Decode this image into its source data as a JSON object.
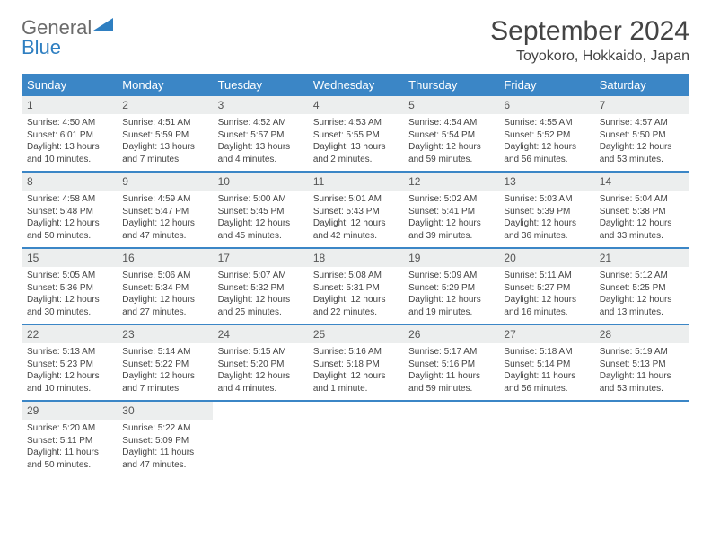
{
  "logo": {
    "part1": "General",
    "part2": "Blue"
  },
  "title": "September 2024",
  "location": "Toyokoro, Hokkaido, Japan",
  "colors": {
    "header_bg": "#3b86c6",
    "daynum_bg": "#eceeee",
    "text": "#444444",
    "logo_gray": "#6b6b6b",
    "logo_blue": "#2f7fc1"
  },
  "weekdays": [
    "Sunday",
    "Monday",
    "Tuesday",
    "Wednesday",
    "Thursday",
    "Friday",
    "Saturday"
  ],
  "weeks": [
    [
      {
        "n": "1",
        "sr": "Sunrise: 4:50 AM",
        "ss": "Sunset: 6:01 PM",
        "dl": "Daylight: 13 hours and 10 minutes."
      },
      {
        "n": "2",
        "sr": "Sunrise: 4:51 AM",
        "ss": "Sunset: 5:59 PM",
        "dl": "Daylight: 13 hours and 7 minutes."
      },
      {
        "n": "3",
        "sr": "Sunrise: 4:52 AM",
        "ss": "Sunset: 5:57 PM",
        "dl": "Daylight: 13 hours and 4 minutes."
      },
      {
        "n": "4",
        "sr": "Sunrise: 4:53 AM",
        "ss": "Sunset: 5:55 PM",
        "dl": "Daylight: 13 hours and 2 minutes."
      },
      {
        "n": "5",
        "sr": "Sunrise: 4:54 AM",
        "ss": "Sunset: 5:54 PM",
        "dl": "Daylight: 12 hours and 59 minutes."
      },
      {
        "n": "6",
        "sr": "Sunrise: 4:55 AM",
        "ss": "Sunset: 5:52 PM",
        "dl": "Daylight: 12 hours and 56 minutes."
      },
      {
        "n": "7",
        "sr": "Sunrise: 4:57 AM",
        "ss": "Sunset: 5:50 PM",
        "dl": "Daylight: 12 hours and 53 minutes."
      }
    ],
    [
      {
        "n": "8",
        "sr": "Sunrise: 4:58 AM",
        "ss": "Sunset: 5:48 PM",
        "dl": "Daylight: 12 hours and 50 minutes."
      },
      {
        "n": "9",
        "sr": "Sunrise: 4:59 AM",
        "ss": "Sunset: 5:47 PM",
        "dl": "Daylight: 12 hours and 47 minutes."
      },
      {
        "n": "10",
        "sr": "Sunrise: 5:00 AM",
        "ss": "Sunset: 5:45 PM",
        "dl": "Daylight: 12 hours and 45 minutes."
      },
      {
        "n": "11",
        "sr": "Sunrise: 5:01 AM",
        "ss": "Sunset: 5:43 PM",
        "dl": "Daylight: 12 hours and 42 minutes."
      },
      {
        "n": "12",
        "sr": "Sunrise: 5:02 AM",
        "ss": "Sunset: 5:41 PM",
        "dl": "Daylight: 12 hours and 39 minutes."
      },
      {
        "n": "13",
        "sr": "Sunrise: 5:03 AM",
        "ss": "Sunset: 5:39 PM",
        "dl": "Daylight: 12 hours and 36 minutes."
      },
      {
        "n": "14",
        "sr": "Sunrise: 5:04 AM",
        "ss": "Sunset: 5:38 PM",
        "dl": "Daylight: 12 hours and 33 minutes."
      }
    ],
    [
      {
        "n": "15",
        "sr": "Sunrise: 5:05 AM",
        "ss": "Sunset: 5:36 PM",
        "dl": "Daylight: 12 hours and 30 minutes."
      },
      {
        "n": "16",
        "sr": "Sunrise: 5:06 AM",
        "ss": "Sunset: 5:34 PM",
        "dl": "Daylight: 12 hours and 27 minutes."
      },
      {
        "n": "17",
        "sr": "Sunrise: 5:07 AM",
        "ss": "Sunset: 5:32 PM",
        "dl": "Daylight: 12 hours and 25 minutes."
      },
      {
        "n": "18",
        "sr": "Sunrise: 5:08 AM",
        "ss": "Sunset: 5:31 PM",
        "dl": "Daylight: 12 hours and 22 minutes."
      },
      {
        "n": "19",
        "sr": "Sunrise: 5:09 AM",
        "ss": "Sunset: 5:29 PM",
        "dl": "Daylight: 12 hours and 19 minutes."
      },
      {
        "n": "20",
        "sr": "Sunrise: 5:11 AM",
        "ss": "Sunset: 5:27 PM",
        "dl": "Daylight: 12 hours and 16 minutes."
      },
      {
        "n": "21",
        "sr": "Sunrise: 5:12 AM",
        "ss": "Sunset: 5:25 PM",
        "dl": "Daylight: 12 hours and 13 minutes."
      }
    ],
    [
      {
        "n": "22",
        "sr": "Sunrise: 5:13 AM",
        "ss": "Sunset: 5:23 PM",
        "dl": "Daylight: 12 hours and 10 minutes."
      },
      {
        "n": "23",
        "sr": "Sunrise: 5:14 AM",
        "ss": "Sunset: 5:22 PM",
        "dl": "Daylight: 12 hours and 7 minutes."
      },
      {
        "n": "24",
        "sr": "Sunrise: 5:15 AM",
        "ss": "Sunset: 5:20 PM",
        "dl": "Daylight: 12 hours and 4 minutes."
      },
      {
        "n": "25",
        "sr": "Sunrise: 5:16 AM",
        "ss": "Sunset: 5:18 PM",
        "dl": "Daylight: 12 hours and 1 minute."
      },
      {
        "n": "26",
        "sr": "Sunrise: 5:17 AM",
        "ss": "Sunset: 5:16 PM",
        "dl": "Daylight: 11 hours and 59 minutes."
      },
      {
        "n": "27",
        "sr": "Sunrise: 5:18 AM",
        "ss": "Sunset: 5:14 PM",
        "dl": "Daylight: 11 hours and 56 minutes."
      },
      {
        "n": "28",
        "sr": "Sunrise: 5:19 AM",
        "ss": "Sunset: 5:13 PM",
        "dl": "Daylight: 11 hours and 53 minutes."
      }
    ],
    [
      {
        "n": "29",
        "sr": "Sunrise: 5:20 AM",
        "ss": "Sunset: 5:11 PM",
        "dl": "Daylight: 11 hours and 50 minutes."
      },
      {
        "n": "30",
        "sr": "Sunrise: 5:22 AM",
        "ss": "Sunset: 5:09 PM",
        "dl": "Daylight: 11 hours and 47 minutes."
      },
      {
        "empty": true
      },
      {
        "empty": true
      },
      {
        "empty": true
      },
      {
        "empty": true
      },
      {
        "empty": true
      }
    ]
  ]
}
